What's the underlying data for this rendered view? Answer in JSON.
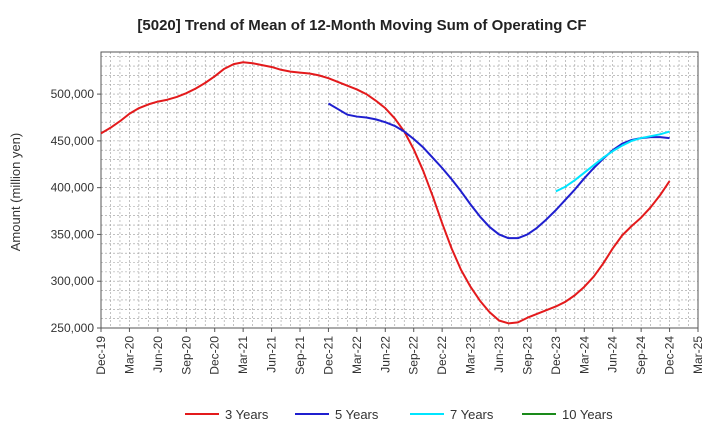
{
  "chart_data": {
    "type": "line",
    "title": "[5020]  Trend of Mean of 12-Month Moving Sum of Operating CF",
    "xlabel": "",
    "ylabel": "Amount (million yen)",
    "ylim": [
      250000,
      545000
    ],
    "y_ticks": [
      250000,
      300000,
      350000,
      400000,
      450000,
      500000
    ],
    "y_tick_labels": [
      "250,000",
      "300,000",
      "350,000",
      "400,000",
      "450,000",
      "500,000"
    ],
    "x_tick_labels": [
      "Dec-19",
      "Mar-20",
      "Jun-20",
      "Sep-20",
      "Dec-20",
      "Mar-21",
      "Jun-21",
      "Sep-21",
      "Dec-21",
      "Mar-22",
      "Jun-22",
      "Sep-22",
      "Dec-22",
      "Mar-23",
      "Jun-23",
      "Sep-23",
      "Dec-23",
      "Mar-24",
      "Jun-24",
      "Sep-24",
      "Dec-24",
      "Mar-25"
    ],
    "grid": true,
    "legend_position": "bottom",
    "series": [
      {
        "name": "3 Years",
        "color": "#e31a1c",
        "start_index": 0,
        "values": [
          458000,
          464000,
          471000,
          479000,
          485000,
          489000,
          492000,
          494000,
          497000,
          501000,
          506000,
          512000,
          519000,
          527000,
          532000,
          534000,
          533000,
          531000,
          529000,
          526000,
          524000,
          523000,
          522000,
          520000,
          517000,
          513000,
          509000,
          505000,
          500000,
          493000,
          485000,
          474000,
          460000,
          441000,
          418000,
          391000,
          362000,
          335000,
          312000,
          294000,
          279000,
          267000,
          258000,
          255000,
          256000,
          261000,
          265000,
          269000,
          273000,
          278000,
          285000,
          294000,
          305000,
          319000,
          335000,
          349000,
          359000,
          368000,
          379000,
          392000,
          407000
        ]
      },
      {
        "name": "5 Years",
        "color": "#1f1fcf",
        "start_index": 24,
        "values": [
          490000,
          484000,
          478000,
          476000,
          475000,
          473000,
          470000,
          466000,
          460000,
          452000,
          443000,
          432000,
          421000,
          409000,
          396000,
          382000,
          369000,
          358000,
          350000,
          346000,
          346000,
          350000,
          357000,
          366000,
          376000,
          387000,
          398000,
          410000,
          421000,
          431000,
          440000,
          447000,
          451000,
          453000,
          454000,
          454000,
          453000
        ]
      },
      {
        "name": "7 Years",
        "color": "#00e5ff",
        "start_index": 48,
        "values": [
          396000,
          401000,
          408000,
          416000,
          424000,
          432000,
          439000,
          445000,
          450000,
          453000,
          455000,
          457000,
          460000
        ]
      },
      {
        "name": "10 Years",
        "color": "#1a8a1a",
        "start_index": 0,
        "values": []
      }
    ]
  }
}
